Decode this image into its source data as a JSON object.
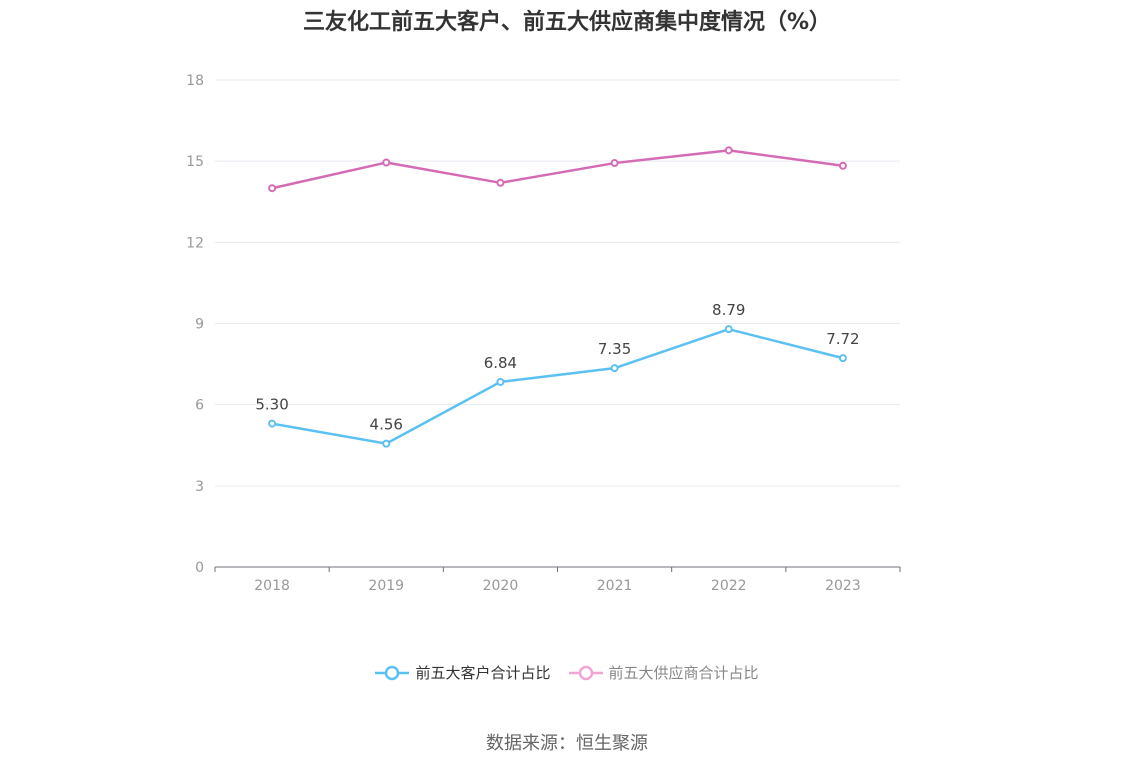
{
  "chart_data": {
    "type": "line",
    "title": "三友化工前五大客户、前五大供应商集中度情况（%）",
    "categories": [
      "2018",
      "2019",
      "2020",
      "2021",
      "2022",
      "2023"
    ],
    "ylim": [
      0,
      18
    ],
    "yticks": [
      0,
      3,
      6,
      9,
      12,
      15,
      18
    ],
    "grid": true,
    "legend_position": "bottom",
    "series": [
      {
        "name": "前五大客户合计占比",
        "color": "#5bc0f2",
        "values": [
          5.3,
          4.56,
          6.84,
          7.35,
          8.79,
          7.72
        ],
        "labels": [
          "5.30",
          "4.56",
          "6.84",
          "7.35",
          "8.79",
          "7.72"
        ]
      },
      {
        "name": "前五大供应商合计占比",
        "color": "#d46cb5",
        "values": [
          14.0,
          14.95,
          14.2,
          14.93,
          15.4,
          14.83
        ],
        "labels": []
      }
    ]
  },
  "legend": {
    "items": [
      "前五大客户合计占比",
      "前五大供应商合计占比"
    ],
    "colors": [
      "#5bc0f2",
      "#f0a6d5"
    ],
    "text_colors": [
      "#333333",
      "#888888"
    ]
  },
  "source": "数据来源：恒生聚源"
}
